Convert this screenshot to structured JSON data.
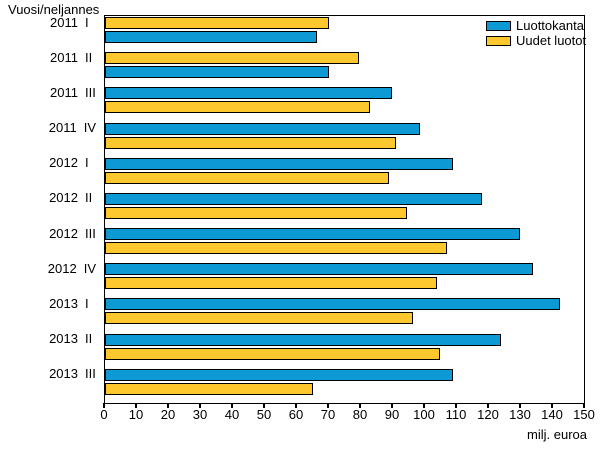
{
  "y_axis_title": "Vuosi/neljannes",
  "legend": {
    "items": [
      {
        "label": "Luottokanta",
        "color": "#0d9ad4"
      },
      {
        "label": "Uudet luotot",
        "color": "#fdc72e"
      }
    ]
  },
  "x_axis": {
    "tick_labels": [
      "0",
      "10",
      "20",
      "30",
      "40",
      "50",
      "60",
      "70",
      "80",
      "90",
      "100",
      "110",
      "120",
      "130",
      "140",
      "150"
    ],
    "unit_label": "milj. euroa"
  },
  "chart_data": {
    "type": "bar",
    "orientation": "horizontal",
    "title": "",
    "xlabel": "milj. euroa",
    "ylabel": "Vuosi/neljannes",
    "xlim": [
      0,
      150
    ],
    "grid": false,
    "legend_position": "top-right",
    "categories": [
      "2011 I",
      "2011 II",
      "2011 III",
      "2011 IV",
      "2012 I",
      "2012 II",
      "2012 III",
      "2012 IV",
      "2013 I",
      "2013 II",
      "2013 III"
    ],
    "categories_split": [
      {
        "year": "2011",
        "quarter": "I"
      },
      {
        "year": "2011",
        "quarter": "II"
      },
      {
        "year": "2011",
        "quarter": "III"
      },
      {
        "year": "2011",
        "quarter": "IV"
      },
      {
        "year": "2012",
        "quarter": "I"
      },
      {
        "year": "2012",
        "quarter": "II"
      },
      {
        "year": "2012",
        "quarter": "III"
      },
      {
        "year": "2012",
        "quarter": "IV"
      },
      {
        "year": "2013",
        "quarter": "I"
      },
      {
        "year": "2013",
        "quarter": "II"
      },
      {
        "year": "2013",
        "quarter": "III"
      }
    ],
    "series": [
      {
        "name": "Luottokanta",
        "color": "#0d9ad4",
        "values": [
          66.5,
          70,
          90,
          98.5,
          109,
          118,
          130,
          134,
          142.5,
          124,
          109
        ]
      },
      {
        "name": "Uudet luotot",
        "color": "#fdc72e",
        "values": [
          70,
          79.5,
          83,
          91,
          89,
          94.5,
          107,
          104,
          96.5,
          105,
          65
        ]
      }
    ],
    "bar_order_per_group": [
      [
        1,
        0
      ],
      [
        1,
        0
      ],
      [
        0,
        1
      ],
      [
        0,
        1
      ],
      [
        0,
        1
      ],
      [
        0,
        1
      ],
      [
        0,
        1
      ],
      [
        0,
        1
      ],
      [
        0,
        1
      ],
      [
        0,
        1
      ],
      [
        0,
        1
      ]
    ],
    "note": "Within each quarter group the longer bar is drawn on top; 2011 I and 2011 II have Uudet luotot on top, all later quarters have Luottokanta on top."
  }
}
